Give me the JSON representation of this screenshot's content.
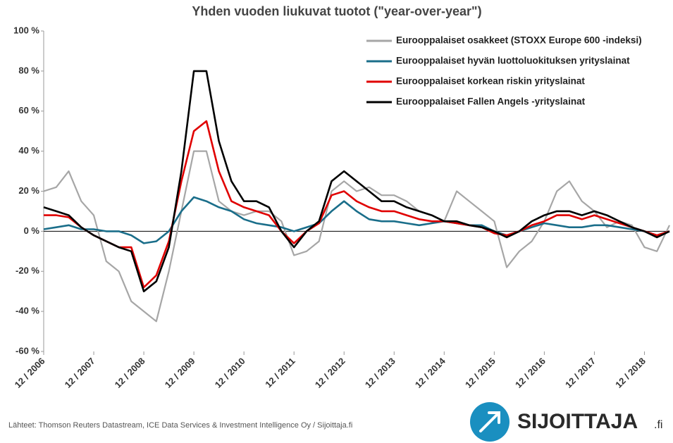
{
  "chart_data": {
    "type": "line",
    "title": "Yhden vuoden liukuvat tuotot (\"year-over-year\")",
    "source": "Lähteet: Thomson Reuters Datastream, ICE Data Services & Investment Intelligence Oy / Sijoittaja.fi",
    "logo_text": "SIJOITTAJA",
    "logo_suffix": ".fi",
    "x": [
      "2006-12",
      "2007-03",
      "2007-06",
      "2007-09",
      "2007-12",
      "2008-03",
      "2008-06",
      "2008-09",
      "2008-12",
      "2009-03",
      "2009-06",
      "2009-09",
      "2009-12",
      "2010-03",
      "2010-06",
      "2010-09",
      "2010-12",
      "2011-03",
      "2011-06",
      "2011-09",
      "2011-12",
      "2012-03",
      "2012-06",
      "2012-09",
      "2012-12",
      "2013-03",
      "2013-06",
      "2013-09",
      "2013-12",
      "2014-03",
      "2014-06",
      "2014-09",
      "2014-12",
      "2015-03",
      "2015-06",
      "2015-09",
      "2015-12",
      "2016-03",
      "2016-06",
      "2016-09",
      "2016-12",
      "2017-03",
      "2017-06",
      "2017-09",
      "2017-12",
      "2018-03",
      "2018-06",
      "2018-09",
      "2018-12",
      "2019-03",
      "2019-06"
    ],
    "series": [
      {
        "name": "Eurooppalaiset osakkeet (STOXX Europe 600 -indeksi)",
        "color": "#a6a6a6",
        "values": [
          20,
          22,
          30,
          15,
          8,
          -15,
          -20,
          -35,
          -40,
          -45,
          -20,
          10,
          40,
          40,
          15,
          10,
          8,
          10,
          10,
          5,
          -12,
          -10,
          -5,
          20,
          25,
          20,
          22,
          18,
          18,
          15,
          10,
          8,
          5,
          20,
          15,
          10,
          5,
          -18,
          -10,
          -5,
          5,
          20,
          25,
          15,
          10,
          2,
          5,
          3,
          -8,
          -10,
          3
        ]
      },
      {
        "name": "Eurooppalaiset hyvän luottoluokituksen yrityslainat",
        "color": "#1a6e8a",
        "values": [
          1,
          2,
          3,
          1,
          1,
          0,
          0,
          -2,
          -6,
          -5,
          0,
          10,
          17,
          15,
          12,
          10,
          6,
          4,
          3,
          2,
          0,
          2,
          4,
          10,
          15,
          10,
          6,
          5,
          5,
          4,
          3,
          4,
          5,
          4,
          3,
          3,
          0,
          -2,
          0,
          2,
          4,
          3,
          2,
          2,
          3,
          3,
          2,
          1,
          0,
          -2,
          0
        ]
      },
      {
        "name": "Eurooppalaiset korkean riskin yrityslainat",
        "color": "#e00000",
        "values": [
          8,
          8,
          7,
          2,
          -2,
          -5,
          -8,
          -8,
          -28,
          -22,
          -5,
          25,
          50,
          55,
          30,
          15,
          12,
          10,
          8,
          0,
          -6,
          0,
          4,
          18,
          20,
          15,
          12,
          10,
          10,
          8,
          6,
          5,
          5,
          4,
          3,
          2,
          -1,
          -2,
          0,
          3,
          5,
          8,
          8,
          6,
          8,
          6,
          4,
          2,
          0,
          -2,
          0
        ]
      },
      {
        "name": "Eurooppalaiset Fallen Angels -yrityslainat",
        "color": "#000000",
        "values": [
          12,
          10,
          8,
          2,
          -2,
          -5,
          -8,
          -10,
          -30,
          -25,
          -8,
          30,
          80,
          80,
          45,
          25,
          15,
          15,
          12,
          0,
          -8,
          0,
          5,
          25,
          30,
          25,
          20,
          15,
          15,
          12,
          10,
          8,
          5,
          5,
          3,
          2,
          0,
          -3,
          0,
          5,
          8,
          10,
          10,
          8,
          10,
          8,
          5,
          2,
          0,
          -3,
          0
        ]
      }
    ],
    "xlim": [
      "2006-12",
      "2019-06"
    ],
    "xticks": [
      {
        "value": "2006-12",
        "label": "12 / 2006"
      },
      {
        "value": "2007-12",
        "label": "12 / 2007"
      },
      {
        "value": "2008-12",
        "label": "12 / 2008"
      },
      {
        "value": "2009-12",
        "label": "12 / 2009"
      },
      {
        "value": "2010-12",
        "label": "12 / 2010"
      },
      {
        "value": "2011-12",
        "label": "12 / 2011"
      },
      {
        "value": "2012-12",
        "label": "12 / 2012"
      },
      {
        "value": "2013-12",
        "label": "12 / 2013"
      },
      {
        "value": "2014-12",
        "label": "12 / 2014"
      },
      {
        "value": "2015-12",
        "label": "12 / 2015"
      },
      {
        "value": "2016-12",
        "label": "12 / 2016"
      },
      {
        "value": "2017-12",
        "label": "12 / 2017"
      },
      {
        "value": "2018-12",
        "label": "12 / 2018"
      }
    ],
    "ylim": [
      -60,
      100
    ],
    "yticks": [
      {
        "value": -60,
        "label": "-60 %"
      },
      {
        "value": -40,
        "label": "-40 %"
      },
      {
        "value": -20,
        "label": "-20 %"
      },
      {
        "value": 0,
        "label": "0 %"
      },
      {
        "value": 20,
        "label": "20 %"
      },
      {
        "value": 40,
        "label": "40 %"
      },
      {
        "value": 60,
        "label": "60 %"
      },
      {
        "value": 80,
        "label": "80 %"
      },
      {
        "value": 100,
        "label": "100 %"
      }
    ],
    "legend": "upper right"
  }
}
